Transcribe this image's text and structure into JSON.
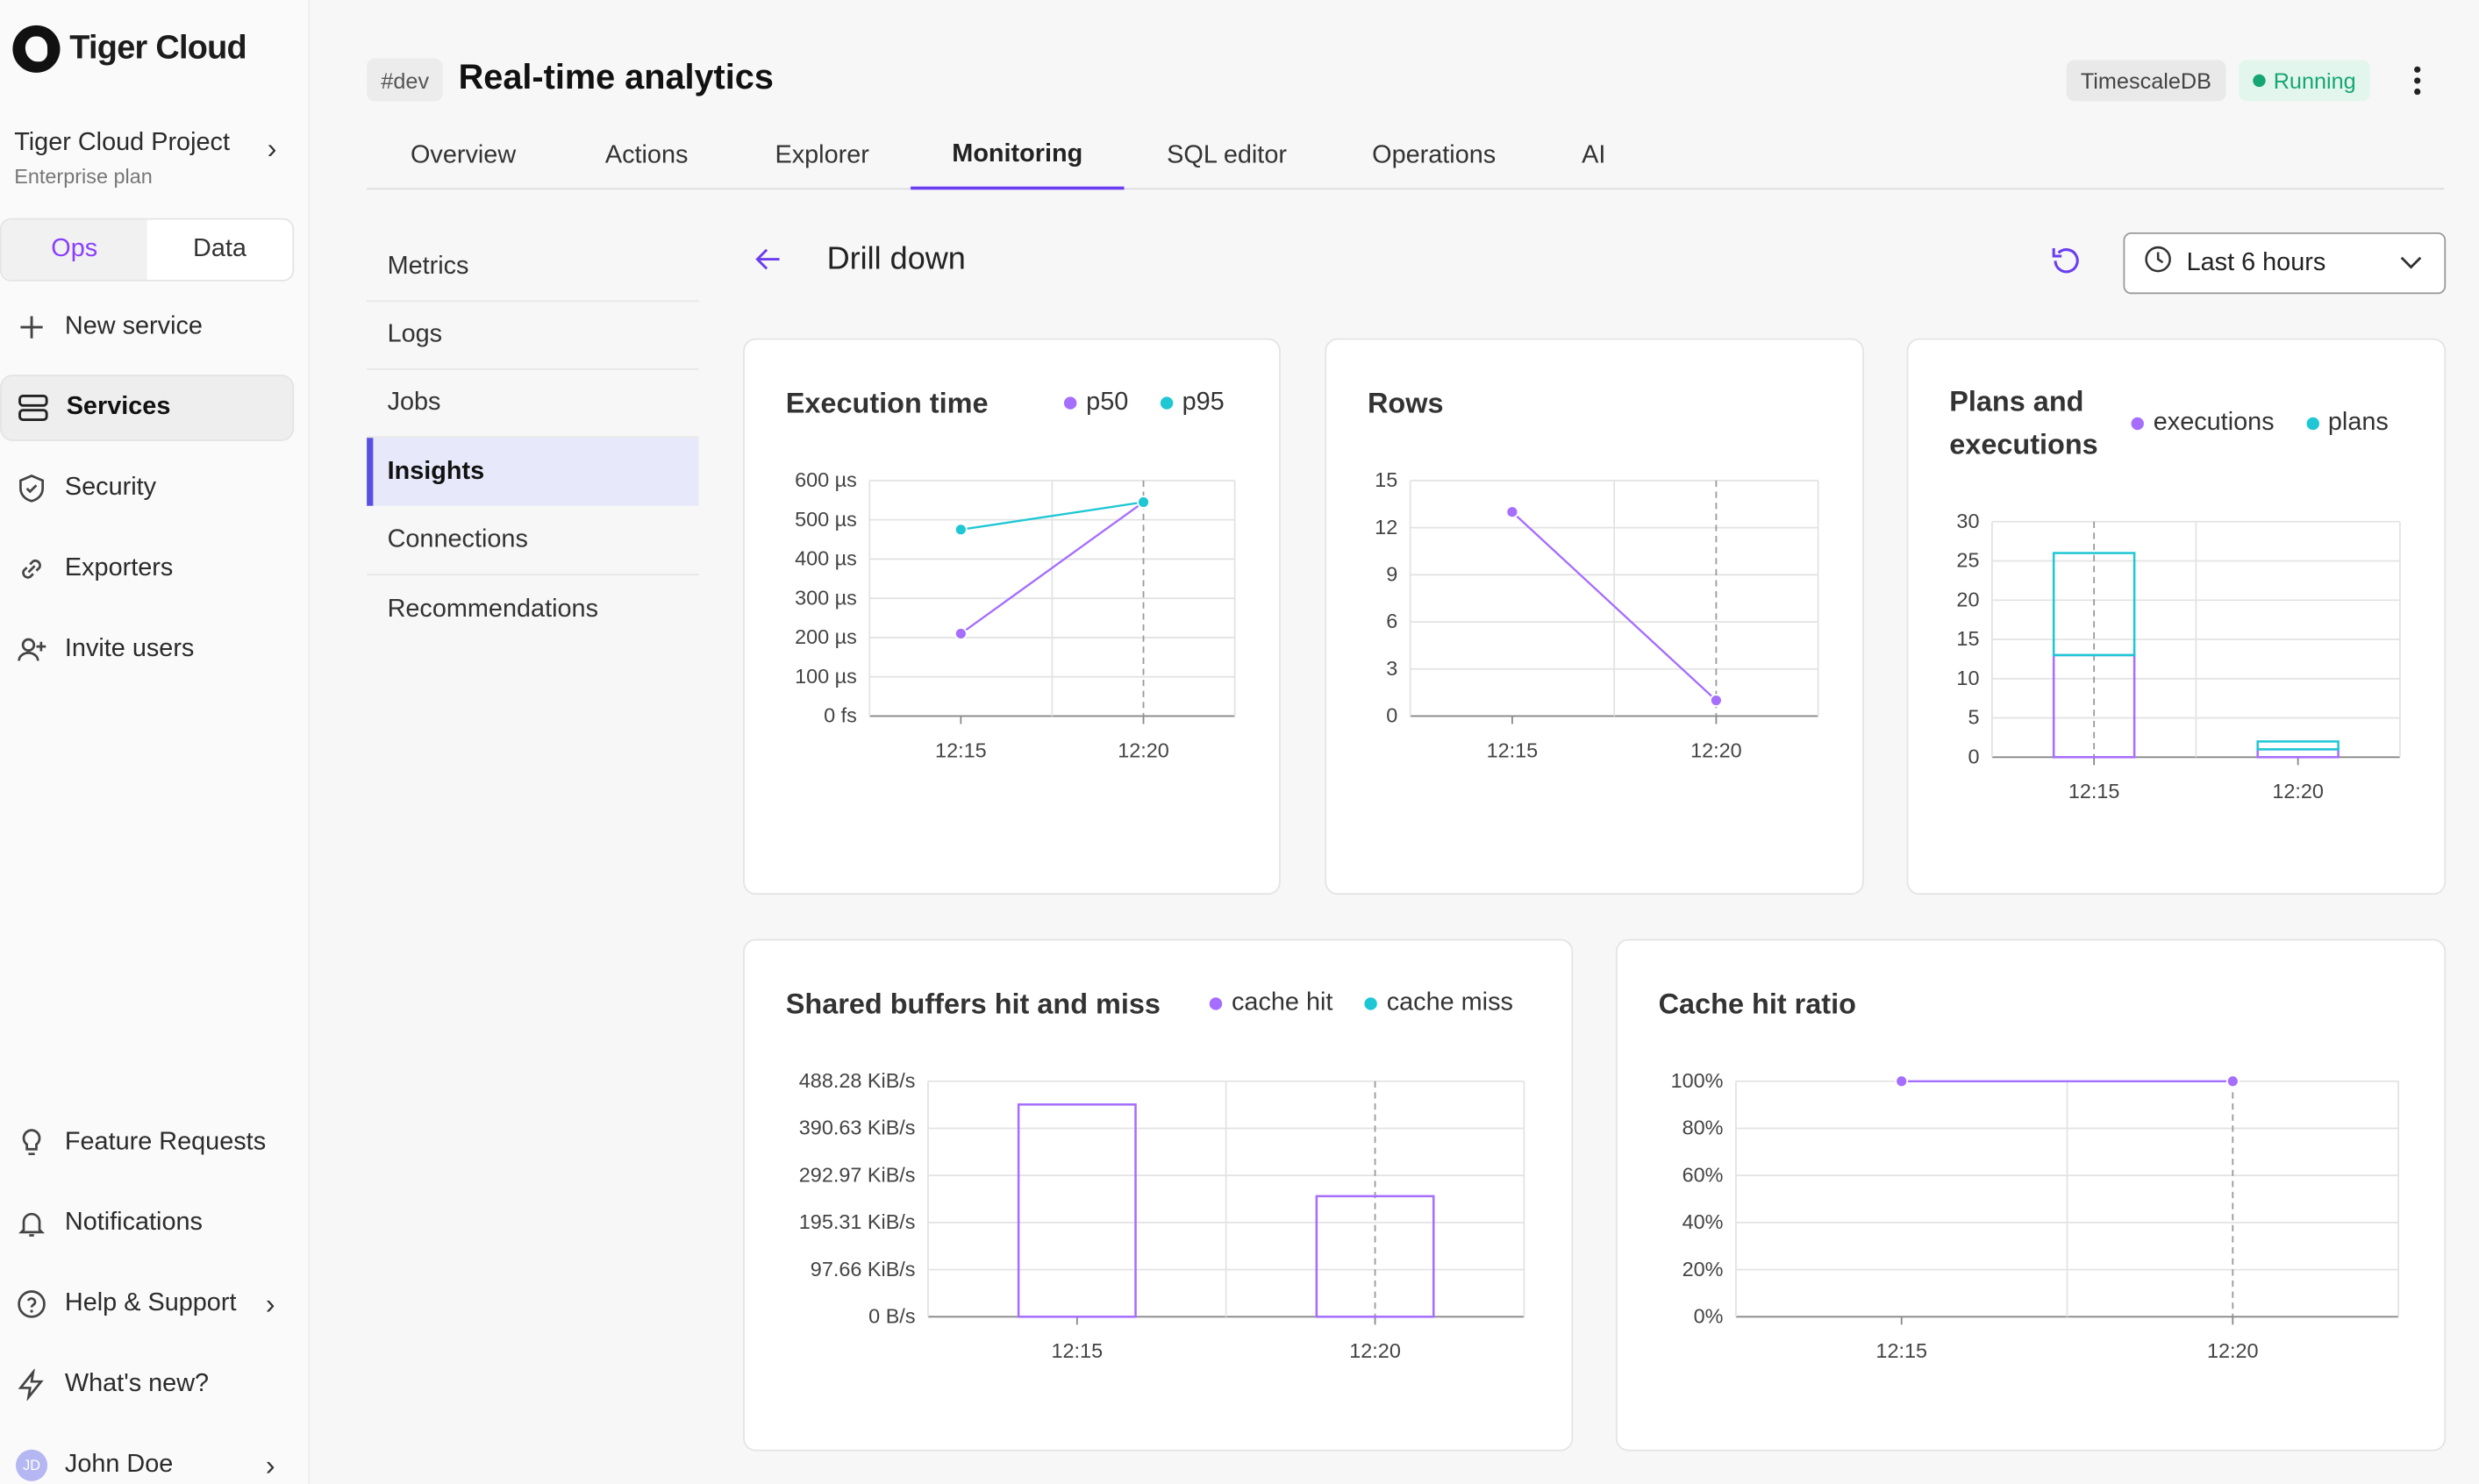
{
  "brand": {
    "name": "Tiger Cloud"
  },
  "project": {
    "name": "Tiger Cloud Project",
    "plan": "Enterprise plan"
  },
  "mode_switch": {
    "ops": "Ops",
    "data": "Data",
    "selected": "Ops"
  },
  "sidebar": {
    "items": [
      {
        "label": "New service",
        "icon": "plus-icon"
      },
      {
        "label": "Services",
        "icon": "server-icon",
        "active": true
      },
      {
        "label": "Security",
        "icon": "shield-check-icon"
      },
      {
        "label": "Exporters",
        "icon": "link-icon"
      },
      {
        "label": "Invite users",
        "icon": "user-plus-icon"
      }
    ],
    "bottom_items": [
      {
        "label": "Feature Requests",
        "icon": "lightbulb-icon"
      },
      {
        "label": "Notifications",
        "icon": "bell-icon"
      },
      {
        "label": "Help & Support",
        "icon": "help-circle-icon"
      },
      {
        "label": "What's new?",
        "icon": "zap-icon"
      }
    ],
    "user": {
      "initials": "JD",
      "name": "John Doe"
    }
  },
  "header": {
    "env_tag": "#dev",
    "title": "Real-time analytics",
    "engine": "TimescaleDB",
    "status": "Running"
  },
  "tabs": [
    "Overview",
    "Actions",
    "Explorer",
    "Monitoring",
    "SQL editor",
    "Operations",
    "AI"
  ],
  "active_tab": "Monitoring",
  "subnav": [
    "Metrics",
    "Logs",
    "Jobs",
    "Insights",
    "Connections",
    "Recommendations"
  ],
  "active_subnav": "Insights",
  "page": {
    "title": "Drill down",
    "time_range": "Last 6 hours"
  },
  "colors": {
    "accent": "#6a3df0",
    "series_purple": "#a56eff",
    "series_teal": "#1fc7d4",
    "running": "#16a673"
  },
  "chart_data": [
    {
      "type": "line",
      "title": "Execution time",
      "x": [
        "12:15",
        "12:20"
      ],
      "y_ticks": [
        "0 fs",
        "100 µs",
        "200 µs",
        "300 µs",
        "400 µs",
        "500 µs",
        "600 µs"
      ],
      "ylim": [
        0,
        600
      ],
      "unit": "µs",
      "series": [
        {
          "name": "p50",
          "values": [
            210,
            545
          ]
        },
        {
          "name": "p95",
          "values": [
            475,
            545
          ]
        }
      ]
    },
    {
      "type": "line",
      "title": "Rows",
      "x": [
        "12:15",
        "12:20"
      ],
      "y_ticks": [
        "0",
        "3",
        "6",
        "9",
        "12",
        "15"
      ],
      "ylim": [
        0,
        15
      ],
      "series": [
        {
          "name": "",
          "values": [
            13,
            1
          ]
        }
      ]
    },
    {
      "type": "bar",
      "title": "Plans and executions",
      "categories": [
        "12:15",
        "12:20"
      ],
      "y_ticks": [
        "0",
        "5",
        "10",
        "15",
        "20",
        "25",
        "30"
      ],
      "ylim": [
        0,
        30
      ],
      "stacked": true,
      "series": [
        {
          "name": "executions",
          "values": [
            13,
            1
          ]
        },
        {
          "name": "plans",
          "values": [
            13,
            1
          ]
        }
      ]
    },
    {
      "type": "bar",
      "title": "Shared buffers hit and miss",
      "categories": [
        "12:15",
        "12:20"
      ],
      "y_ticks": [
        "0 B/s",
        "97.66 KiB/s",
        "195.31 KiB/s",
        "292.97 KiB/s",
        "390.63 KiB/s",
        "488.28 KiB/s"
      ],
      "ylim": [
        0,
        488.28
      ],
      "unit": "KiB/s",
      "series": [
        {
          "name": "cache hit",
          "values": [
            440,
            250
          ]
        },
        {
          "name": "cache miss",
          "values": [
            0,
            0
          ]
        }
      ]
    },
    {
      "type": "line",
      "title": "Cache hit ratio",
      "x": [
        "12:15",
        "12:20"
      ],
      "y_ticks": [
        "0%",
        "20%",
        "40%",
        "60%",
        "80%",
        "100%"
      ],
      "ylim": [
        0,
        100
      ],
      "unit": "%",
      "series": [
        {
          "name": "",
          "values": [
            100,
            100
          ]
        }
      ]
    }
  ]
}
